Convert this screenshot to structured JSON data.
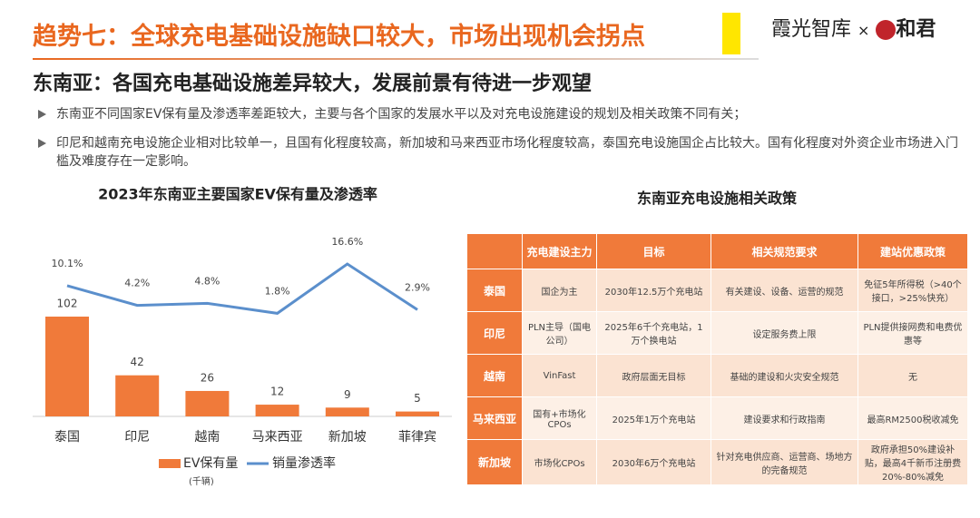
{
  "header": {
    "title": "趋势七：全球充电基础设施缺口较大，市场出现机会拐点",
    "logo_text": "霞光智库",
    "logo_cross": "×",
    "logo_brand": "和君"
  },
  "subtitle": "东南亚：各国充电基础设施差异较大，发展前景有待进一步观望",
  "bullets": [
    "东南亚不同国家EV保有量及渗透率差距较大，主要与各个国家的发展水平以及对充电设施建设的规划及相关政策不同有关；",
    "印尼和越南充电设施企业相对比较单一，且国有化程度较高，新加坡和马来西亚市场化程度较高，泰国充电设施国企占比较大。国有化程度对外资企业市场进入门槛及难度存在一定影响。"
  ],
  "chart_data": {
    "type": "combo",
    "title": "2023年东南亚主要国家EV保有量及渗透率",
    "categories": [
      "泰国",
      "印尼",
      "越南",
      "马来西亚",
      "新加坡",
      "菲律宾"
    ],
    "series": [
      {
        "name": "EV保有量",
        "unit": "(千辆)",
        "color": "#f07a3a",
        "values": [
          102,
          42,
          26,
          12,
          9,
          5
        ]
      },
      {
        "name": "销量渗透率",
        "color": "#5b8fcc",
        "axis": "y2",
        "values": [
          10.1,
          4.2,
          4.8,
          1.8,
          16.6,
          2.9
        ],
        "value_labels": [
          "10.1%",
          "4.2%",
          "4.8%",
          "1.8%",
          "16.6%",
          "2.9%"
        ]
      }
    ]
  },
  "table": {
    "title": "东南亚充电设施相关政策",
    "header": [
      "",
      "充电建设主力",
      "目标",
      "相关规范要求",
      "建站优惠政策"
    ],
    "rows": [
      [
        "泰国",
        "国企为主",
        "2030年12.5万个充电站",
        "有关建设、设备、运营的规范",
        "免征5年所得税（>40个接口，>25%快充）"
      ],
      [
        "印尼",
        "PLN主导（国电公司）",
        "2025年6千个充电站，1万个换电站",
        "设定服务费上限",
        "PLN提供接网费和电费优惠等"
      ],
      [
        "越南",
        "VinFast",
        "政府层面无目标",
        "基础的建设和火灾安全规范",
        "无"
      ],
      [
        "马来西亚",
        "国有+市场化CPOs",
        "2025年1万个充电站",
        "建设要求和行政指南",
        "最高RM2500税收减免"
      ],
      [
        "新加坡",
        "市场化CPOs",
        "2030年6万个充电站",
        "针对充电供应商、运营商、场地方的完备规范",
        "政府承担50%建设补贴，最高4千新币注册费20%-80%减免"
      ]
    ]
  }
}
